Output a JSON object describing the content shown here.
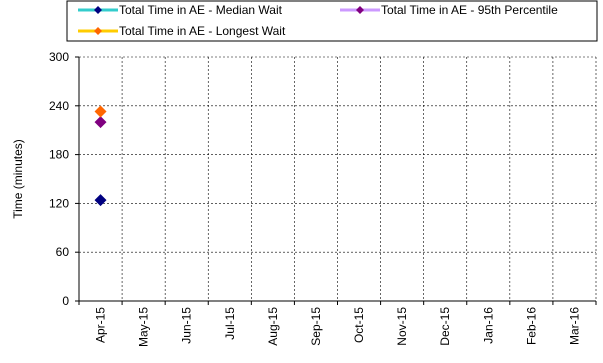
{
  "chart_data": {
    "type": "scatter",
    "ylabel": "Time (minutes)",
    "ylim": [
      0,
      300
    ],
    "yticks": [
      "0",
      "60",
      "120",
      "180",
      "240",
      "300"
    ],
    "categories": [
      "Apr-15",
      "May-15",
      "Jun-15",
      "Jul-15",
      "Aug-15",
      "Sep-15",
      "Oct-15",
      "Nov-15",
      "Dec-15",
      "Jan-16",
      "Feb-16",
      "Mar-16"
    ],
    "grid": true,
    "legend_position": "top",
    "series": [
      {
        "name": "Total Time in AE - Median Wait",
        "line_color": "#33CCCC",
        "marker_color": "#000080",
        "values": [
          124,
          null,
          null,
          null,
          null,
          null,
          null,
          null,
          null,
          null,
          null,
          null
        ]
      },
      {
        "name": "Total Time in AE - 95th Percentile",
        "line_color": "#CC99FF",
        "marker_color": "#800080",
        "values": [
          220,
          null,
          null,
          null,
          null,
          null,
          null,
          null,
          null,
          null,
          null,
          null
        ]
      },
      {
        "name": "Total Time in AE - Longest Wait",
        "line_color": "#FFCC00",
        "marker_color": "#FF6600",
        "values": [
          233,
          null,
          null,
          null,
          null,
          null,
          null,
          null,
          null,
          null,
          null,
          null
        ]
      }
    ]
  }
}
